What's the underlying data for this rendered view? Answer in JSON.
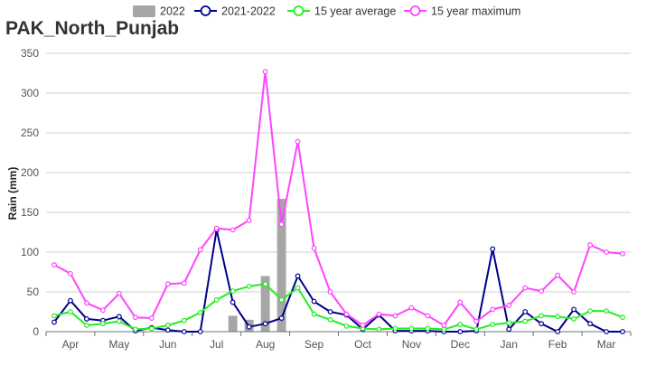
{
  "chart_data": {
    "type": "line",
    "title": "PAK_North_Punjab",
    "ylabel": "Rain (mm)",
    "xlabel": "",
    "ylim": [
      0,
      350
    ],
    "yticks": [
      0,
      50,
      100,
      150,
      200,
      250,
      300,
      350
    ],
    "grid": true,
    "legend_position": "top",
    "month_labels": [
      "Apr",
      "May",
      "Jun",
      "Jul",
      "Aug",
      "Sep",
      "Oct",
      "Nov",
      "Dec",
      "Jan",
      "Feb",
      "Mar"
    ],
    "x": [
      1,
      2,
      3,
      4,
      5,
      6,
      7,
      8,
      9,
      10,
      11,
      12,
      13,
      14,
      15,
      16,
      17,
      18,
      19,
      20,
      21,
      22,
      23,
      24,
      25,
      26,
      27,
      28,
      29,
      30,
      31,
      32,
      33,
      34,
      35,
      36
    ],
    "series": [
      {
        "name": "2022",
        "kind": "bar",
        "color": "#a6a6a6",
        "values": [
          null,
          null,
          null,
          null,
          null,
          null,
          null,
          null,
          null,
          null,
          null,
          20,
          15,
          70,
          167,
          null,
          null,
          null,
          null,
          null,
          null,
          null,
          null,
          null,
          null,
          null,
          null,
          null,
          null,
          null,
          null,
          null,
          null,
          null,
          null,
          null
        ]
      },
      {
        "name": "2021-2022",
        "kind": "line",
        "color": "#00008b",
        "values": [
          12,
          39,
          16,
          14,
          19,
          1,
          5,
          2,
          0,
          0,
          128,
          37,
          6,
          10,
          17,
          70,
          38,
          25,
          21,
          3,
          21,
          1,
          1,
          1,
          0,
          0,
          1,
          104,
          3,
          25,
          10,
          0,
          28,
          10,
          0,
          0
        ]
      },
      {
        "name": "15 year average",
        "kind": "line",
        "color": "#22ee22",
        "values": [
          20,
          25,
          8,
          10,
          13,
          3,
          4,
          8,
          14,
          24,
          40,
          51,
          57,
          60,
          40,
          55,
          22,
          15,
          7,
          4,
          3,
          4,
          4,
          4,
          3,
          9,
          3,
          9,
          11,
          13,
          20,
          19,
          16,
          26,
          26,
          18
        ]
      },
      {
        "name": "15 year maximum",
        "kind": "line",
        "color": "#ff44ff",
        "values": [
          84,
          73,
          36,
          27,
          48,
          18,
          17,
          60,
          61,
          103,
          130,
          128,
          140,
          327,
          135,
          239,
          105,
          50,
          22,
          8,
          22,
          20,
          30,
          20,
          8,
          37,
          13,
          28,
          33,
          55,
          51,
          71,
          50,
          109,
          100,
          98
        ]
      }
    ]
  }
}
